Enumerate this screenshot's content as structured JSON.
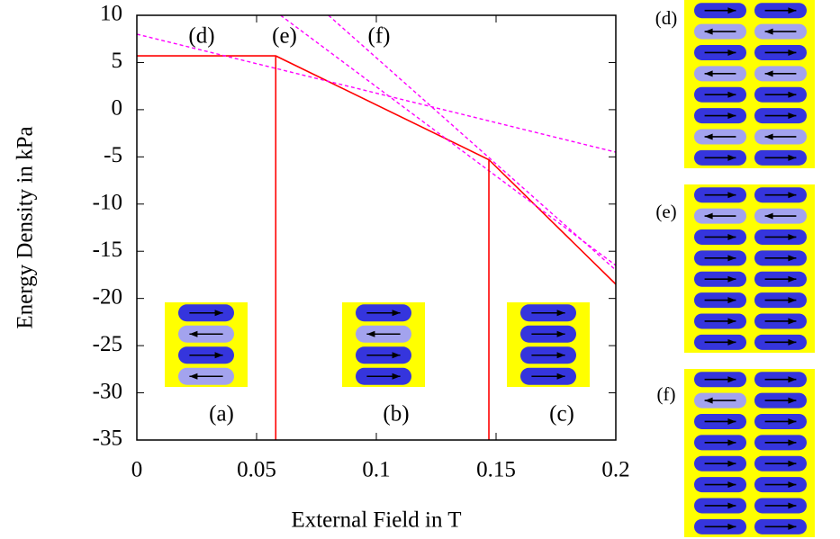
{
  "chart_data": {
    "type": "line",
    "xlabel": "External Field in T",
    "ylabel": "Energy Density in kPa",
    "xlim": [
      0,
      0.2
    ],
    "ylim": [
      -35,
      10
    ],
    "xticks": [
      0,
      0.05,
      0.1,
      0.15,
      0.2
    ],
    "yticks": [
      -35,
      -30,
      -25,
      -20,
      -15,
      -10,
      -5,
      0,
      5,
      10
    ],
    "series": [
      {
        "color": "#ff0000",
        "style": "solid",
        "x": [
          0,
          0.058,
          0.147,
          0.2
        ],
        "values": [
          5.7,
          5.7,
          -5.3,
          -18.5
        ]
      },
      {
        "color": "#ff00ff",
        "style": "dashed",
        "x": [
          0,
          0.2
        ],
        "values": [
          8,
          -4.5
        ]
      },
      {
        "color": "#ff00ff",
        "style": "dashed",
        "x": [
          0.06,
          0.2
        ],
        "values": [
          10,
          -16.5
        ]
      },
      {
        "color": "#ff00ff",
        "style": "dashed",
        "x": [
          0.08,
          0.2
        ],
        "values": [
          10,
          -17
        ]
      }
    ],
    "annotations": [
      "(d)",
      "(e)",
      "(f)",
      "(a)",
      "(b)",
      "(c)",
      "(d)",
      "(e)",
      "(f)"
    ]
  }
}
